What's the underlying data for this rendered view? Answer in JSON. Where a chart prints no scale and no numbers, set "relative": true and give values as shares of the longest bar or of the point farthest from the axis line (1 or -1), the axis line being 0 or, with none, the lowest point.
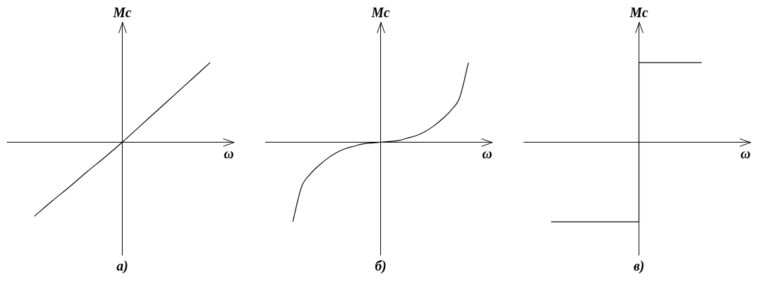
{
  "chart_data": [
    {
      "type": "line",
      "title": "а)",
      "xlabel": "ω",
      "ylabel": "Mc",
      "relative": true,
      "marker": "none",
      "color": "#000000",
      "categories": [
        null,
        null,
        null,
        null,
        null,
        null,
        null,
        null,
        null,
        null,
        null
      ],
      "values": [
        -0.93,
        -0.74,
        -0.56,
        -0.37,
        -0.19,
        0,
        0.2,
        0.4,
        0.6,
        0.8,
        1
      ]
    },
    {
      "type": "line",
      "title": "б)",
      "xlabel": "ω",
      "ylabel": "Mc",
      "relative": true,
      "marker": "none",
      "color": "#000000",
      "categories": [
        null,
        null,
        null,
        null,
        null,
        null,
        null,
        null,
        null,
        null,
        null,
        null,
        null,
        null,
        null,
        null,
        null,
        null,
        null,
        null,
        null
      ],
      "values": [
        -1,
        -0.56,
        -0.4,
        -0.29,
        -0.2,
        -0.13,
        -0.08,
        -0.05,
        -0.02,
        -0.01,
        0,
        0.01,
        0.02,
        0.05,
        0.08,
        0.13,
        0.2,
        0.29,
        0.4,
        0.56,
        1
      ]
    },
    {
      "type": "step",
      "title": "в)",
      "xlabel": "ω",
      "ylabel": "Mc",
      "relative": true,
      "marker": "none",
      "color": "#000000",
      "categories": [
        null,
        null,
        null,
        null,
        null,
        null,
        null,
        null
      ],
      "values": [
        -1,
        -1,
        -1,
        -1,
        1,
        1,
        1,
        null
      ]
    }
  ]
}
